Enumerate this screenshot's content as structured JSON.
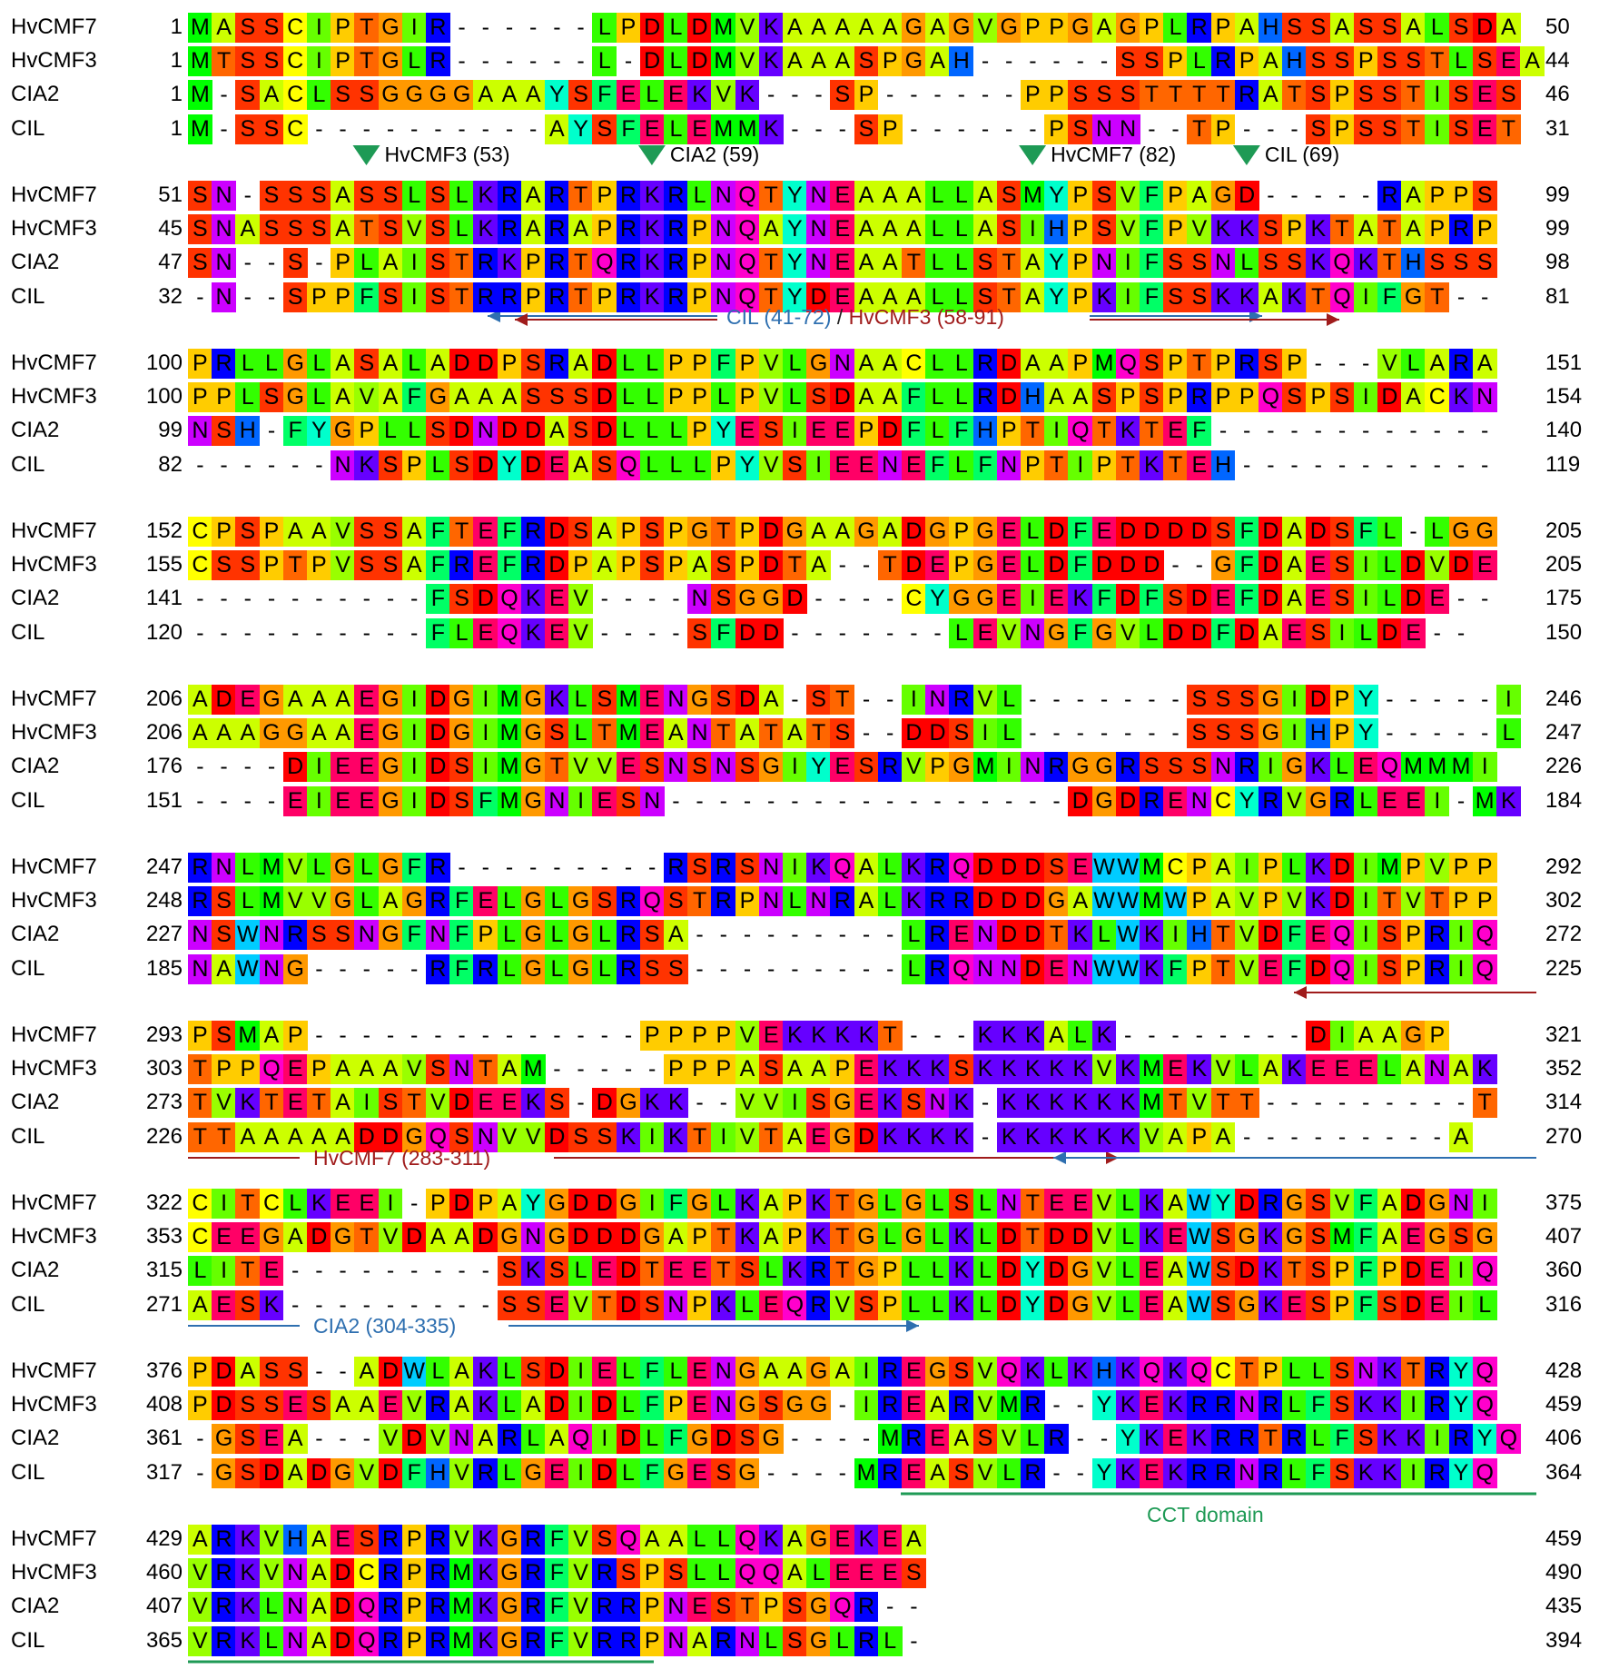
{
  "sequences": [
    "HvCMF7",
    "HvCMF3",
    "CIA2",
    "CIL"
  ],
  "blocks": [
    {
      "rows": [
        {
          "name": "HvCMF7",
          "start": "1",
          "end": "50",
          "seq": "MASSCIPTGIR------LPDLDMVKAAAAAGAGVGPPGAGPLRPAHSSASSALSDA"
        },
        {
          "name": "HvCMF3",
          "start": "1",
          "end": "44",
          "seq": "MTSSCIPTGLR------L-DLDMVKAAASPGAH------SSPLRPAHSSPSSTLSEA"
        },
        {
          "name": "CIA2",
          "start": "1",
          "end": "46",
          "seq": "M-SACLSSGGGGAAAYSFELEKVK---SP------PPSSSTTTTRATSPSSTISES"
        },
        {
          "name": "CIL",
          "start": "1",
          "end": "31",
          "seq": "M-SSC----------AYSFELEMMK---SP------PSNN--TP---SPSSTISET"
        }
      ]
    },
    {
      "rows": [
        {
          "name": "HvCMF7",
          "start": "51",
          "end": "99",
          "seq": "SN-SSSASSLSLKRARTPRKRLNQTYNEAAALLASMYPSVFPAGD-----RAPPS"
        },
        {
          "name": "HvCMF3",
          "start": "45",
          "end": "99",
          "seq": "SNASSSATSVSLKRARAPRKRPNQAYNEAAALLASIHPSVFPVKKSPKTATAPRP"
        },
        {
          "name": "CIA2",
          "start": "47",
          "end": "98",
          "seq": "SN--S-PLAISTRKPRTQRKRPNQTYNEAATLLSTAYPNIFSSNLSSKQKTHSSS"
        },
        {
          "name": "CIL",
          "start": "32",
          "end": "81",
          "seq": "-N--SPPFSISTRRPRTPRKRPNQTYDEAAALLSTAYPKIFSSKKAKTQIFGT--"
        }
      ]
    },
    {
      "rows": [
        {
          "name": "HvCMF7",
          "start": "100",
          "end": "151",
          "seq": "PRLLGLASALADDPSRADLLPPFPVLGNAACLLRDAAPMQSPTPRSP---VLARA"
        },
        {
          "name": "HvCMF3",
          "start": "100",
          "end": "154",
          "seq": "PPLSGLAVAFGAAASSSDLLPPLPVLSDAAFLLRDHAASPSPRPPQSPSIDACKN"
        },
        {
          "name": "CIA2",
          "start": "99",
          "end": "140",
          "seq": "NSH-FYGPLLSDNDDASDLLLPYESIEEPDFLFHPTIQTKTEF------------"
        },
        {
          "name": "CIL",
          "start": "82",
          "end": "119",
          "seq": "------NKSPLSDYDEASQLLLPYVSIEENEFLFNPTIPTKTEH-----------"
        }
      ]
    },
    {
      "rows": [
        {
          "name": "HvCMF7",
          "start": "152",
          "end": "205",
          "seq": "CPSPAAVSSAFTEFRDSAPSPGTPDGAAGADGPGELDFEDDDDSFDADSFL-LGG"
        },
        {
          "name": "HvCMF3",
          "start": "155",
          "end": "205",
          "seq": "CSSPTPVSSAFREFRDPAPSPASPDTA--TDEPGELDFDDD--GFDAESILDVDE"
        },
        {
          "name": "CIA2",
          "start": "141",
          "end": "175",
          "seq": "----------FSDQKEV----NSGGD----CYGGEIEKFDFSDEFDAESILDE--"
        },
        {
          "name": "CIL",
          "start": "120",
          "end": "150",
          "seq": "----------FLEQKEV----SFDD-------LEVNGFGVLDDFDAESILDE--"
        }
      ]
    },
    {
      "rows": [
        {
          "name": "HvCMF7",
          "start": "206",
          "end": "246",
          "seq": "ADEGAAAEGIDGIMGKLSMENGSDA-ST--INRVL-------SSSGIDPY-----I"
        },
        {
          "name": "HvCMF3",
          "start": "206",
          "end": "247",
          "seq": "AAAGGAAEGIDGIMGSLTMEANTATATS--DDSIL-------SSSGIHPY-----L"
        },
        {
          "name": "CIA2",
          "start": "176",
          "end": "226",
          "seq": "----DIEEGIDSIMGTVVESNSNSGIYESRVPGMINRGGRSSSNRIGKLEQMMMI"
        },
        {
          "name": "CIL",
          "start": "151",
          "end": "184",
          "seq": "----EIEEGIDSFMGNIESN-----------------DGDRENCYRVGRLEEI-MK"
        }
      ]
    },
    {
      "rows": [
        {
          "name": "HvCMF7",
          "start": "247",
          "end": "292",
          "seq": "RNLMVLGLGFR---------RSRSNIKQALKRQDDDSEWWMCPAIPLKDIMPVPP"
        },
        {
          "name": "HvCMF3",
          "start": "248",
          "end": "302",
          "seq": "RSLMVVGLAGRFELGLGSRQSTRPNLNRALKRRDDDGAWWMWPAVPVKDITVTPP"
        },
        {
          "name": "CIA2",
          "start": "227",
          "end": "272",
          "seq": "NSWNRSSNGFNFPLGLGLRSA---------LRENDDTKLWKIHTVDFEQISPRIQ"
        },
        {
          "name": "CIL",
          "start": "185",
          "end": "225",
          "seq": "NAWNG-----RFRLGLGLRSS---------LRQNNDENWWKFPTVEFDQISPRIQ"
        }
      ]
    },
    {
      "rows": [
        {
          "name": "HvCMF7",
          "start": "293",
          "end": "321",
          "seq": "PSMAP--------------PPPPVEKKKKT---KKKALK--------DIAAGP"
        },
        {
          "name": "HvCMF3",
          "start": "303",
          "end": "352",
          "seq": "TPPQEPAAAVSNTAM-----PPPASAAPEKKKSKKKKKVKMEKVLAKEEELANAK"
        },
        {
          "name": "CIA2",
          "start": "273",
          "end": "314",
          "seq": "TVKTETAISTVDEEKS-DGKK--VVISGEKSNK-KKKKKKMTVTT---------T"
        },
        {
          "name": "CIL",
          "start": "226",
          "end": "270",
          "seq": "TTAAAAADDGQSNVVDSSKIKTIVTAEGDKKKK-KKKKKKVAPA---------A"
        }
      ]
    },
    {
      "rows": [
        {
          "name": "HvCMF7",
          "start": "322",
          "end": "375",
          "seq": "CITCLKEEI-PDPAYGDDGIFGLKAPKTGLGLSLNTEEVLKAWYDRGSVFADGNI"
        },
        {
          "name": "HvCMF3",
          "start": "353",
          "end": "407",
          "seq": "CEEGADGTVDAADGNGDDDGAPTKAPKTGLGLKLDTDDVLKEWSGKGSMFAEGSG"
        },
        {
          "name": "CIA2",
          "start": "315",
          "end": "360",
          "seq": "LITE---------SKSLEDTEETSLKRTGPLLKLDYDGVLEAWSDKTSPFPDEIQ"
        },
        {
          "name": "CIL",
          "start": "271",
          "end": "316",
          "seq": "AESK---------SSEVTDSNPKLEQRVSPLLKLDYDGVLEAWSGKESPFSDEIL"
        }
      ]
    },
    {
      "rows": [
        {
          "name": "HvCMF7",
          "start": "376",
          "end": "428",
          "seq": "PDASS--ADWLAKLSDIELFLENGAAGAIREGSVQKLKHKQKQCTPLLSNKTRYQ"
        },
        {
          "name": "HvCMF3",
          "start": "408",
          "end": "459",
          "seq": "PDSSESAAEVRAKLADIDLFPENGSGG-IREARVMR--YKEKRRNRLFSKKIRYQ"
        },
        {
          "name": "CIA2",
          "start": "361",
          "end": "406",
          "seq": "-GSEA---VDVNARLAQIDLFGDSG----MREASVLR--YKEKRRTRLFSKKIRYQ"
        },
        {
          "name": "CIL",
          "start": "317",
          "end": "364",
          "seq": "-GSDADGVDFHVRLGEIDLFGESG----MREASVLR--YKEKRRNRLFSKKIRYQ"
        }
      ]
    },
    {
      "rows": [
        {
          "name": "HvCMF7",
          "start": "429",
          "end": "459",
          "seq": "ARKVHAESRPRVKGRFVSQAALLQKAGEKEA"
        },
        {
          "name": "HvCMF3",
          "start": "460",
          "end": "490",
          "seq": "VRKVNADCRPRMKGRFVRSPSLLQQALEEES"
        },
        {
          "name": "CIA2",
          "start": "407",
          "end": "435",
          "seq": "VRKLNADQRPRMKGRFVRRPNESTPSGQR--"
        },
        {
          "name": "CIL",
          "start": "365",
          "end": "394",
          "seq": "VRKLNADQRPRMKGRFVRRPNARNLSGLRL-"
        }
      ]
    }
  ],
  "annotations": {
    "markers": [
      {
        "label": "HvCMF3 (53)",
        "block": 1,
        "col": 7
      },
      {
        "label": "CIA2 (59)",
        "block": 1,
        "col": 19
      },
      {
        "label": "HvCMF7 (82)",
        "block": 1,
        "col": 35
      },
      {
        "label": "CIL (69)",
        "block": 1,
        "col": 44
      }
    ],
    "regions": [
      {
        "label_parts": [
          {
            "text": "CIL (41-72)",
            "color": "#2e6fb0"
          },
          {
            "text": " / ",
            "color": "#222222"
          },
          {
            "text": "HvCMF3 (58-91)",
            "color": "#a01c1c"
          }
        ]
      },
      {
        "label": "HvCMF7 (283-311)",
        "color": "#a01c1c"
      },
      {
        "label": "CIA2 (304-335)",
        "color": "#2e6fb0"
      },
      {
        "label": "CCT domain",
        "color": "#1e9a55"
      }
    ]
  },
  "colors": {
    "residues": {
      "A": "#ccff00",
      "R": "#0000ff",
      "N": "#cc00ff",
      "D": "#ff0000",
      "C": "#ffff00",
      "Q": "#ff00cc",
      "E": "#ff0066",
      "G": "#ff9900",
      "H": "#0066ff",
      "I": "#66ff00",
      "L": "#33ff00",
      "K": "#6600ff",
      "M": "#00ff00",
      "F": "#00ff66",
      "P": "#ffcc00",
      "S": "#ff3300",
      "T": "#ff6600",
      "W": "#00ccff",
      "Y": "#00ffcc",
      "V": "#99ff00"
    },
    "blue_arrow": "#2e6fb0",
    "red_arrow": "#a01c1c",
    "green": "#1e9a55",
    "marker_triangle": "#1e9a55"
  }
}
